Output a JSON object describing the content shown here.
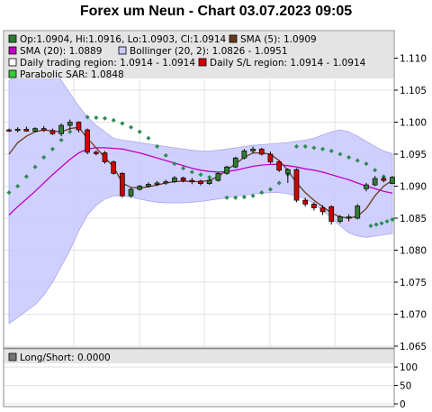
{
  "title": "Forex um Neun - Chart 03.07.2023 09:05",
  "legend": {
    "ohlc": "Op:1.0904, Hi:1.0916, Lo:1.0903, Cl:1.0914",
    "sma5": "SMA (5): 1.0909",
    "sma20": "SMA (20): 1.0889",
    "bollinger": "Bollinger (20, 2): 1.0826 - 1.0951",
    "daily_region": "Daily trading region: 1.0914 - 1.0914",
    "sl_region": "Daily S/L region: 1.0914 - 1.0914",
    "sar": "Parabolic SAR: 1.0848",
    "longshort": "Long/Short: 0.0000"
  },
  "colors": {
    "sma5": "#6b3a1f",
    "sma20": "#c000c0",
    "bollinger_fill": "#c8c8ff",
    "sar": "#2e8b57",
    "up": "#2e7d32",
    "down": "#d00000"
  },
  "chart_data": {
    "type": "candlestick",
    "y_ticks": [
      "1.110",
      "1.105",
      "1.100",
      "1.095",
      "1.090",
      "1.085",
      "1.080",
      "1.075",
      "1.070",
      "1.065"
    ],
    "ylim": [
      1.065,
      1.1125
    ],
    "candles": [
      {
        "o": 1.0988,
        "h": 1.099,
        "l": 1.0985,
        "c": 1.0987
      },
      {
        "o": 1.0987,
        "h": 1.0992,
        "l": 1.0984,
        "c": 1.0989
      },
      {
        "o": 1.0989,
        "h": 1.0993,
        "l": 1.0985,
        "c": 1.0986
      },
      {
        "o": 1.0986,
        "h": 1.0992,
        "l": 1.0984,
        "c": 1.099
      },
      {
        "o": 1.099,
        "h": 1.0994,
        "l": 1.0985,
        "c": 1.0987
      },
      {
        "o": 1.0987,
        "h": 1.099,
        "l": 1.098,
        "c": 1.0982
      },
      {
        "o": 1.0982,
        "h": 1.0998,
        "l": 1.0978,
        "c": 1.0995
      },
      {
        "o": 1.0995,
        "h": 1.1004,
        "l": 1.0988,
        "c": 1.1
      },
      {
        "o": 1.1,
        "h": 1.1001,
        "l": 1.0984,
        "c": 1.0988
      },
      {
        "o": 1.0988,
        "h": 1.099,
        "l": 1.095,
        "c": 1.0953
      },
      {
        "o": 1.0953,
        "h": 1.0956,
        "l": 1.0948,
        "c": 1.0952
      },
      {
        "o": 1.0952,
        "h": 1.0955,
        "l": 1.0935,
        "c": 1.0938
      },
      {
        "o": 1.0938,
        "h": 1.094,
        "l": 1.0918,
        "c": 1.092
      },
      {
        "o": 1.092,
        "h": 1.0922,
        "l": 1.0882,
        "c": 1.0885
      },
      {
        "o": 1.0885,
        "h": 1.0898,
        "l": 1.0882,
        "c": 1.0895
      },
      {
        "o": 1.0895,
        "h": 1.0902,
        "l": 1.0893,
        "c": 1.09
      },
      {
        "o": 1.09,
        "h": 1.0906,
        "l": 1.0898,
        "c": 1.0903
      },
      {
        "o": 1.0903,
        "h": 1.0908,
        "l": 1.09,
        "c": 1.0905
      },
      {
        "o": 1.0905,
        "h": 1.091,
        "l": 1.0902,
        "c": 1.0907
      },
      {
        "o": 1.0907,
        "h": 1.0916,
        "l": 1.0905,
        "c": 1.0913
      },
      {
        "o": 1.0913,
        "h": 1.0915,
        "l": 1.0906,
        "c": 1.0909
      },
      {
        "o": 1.0909,
        "h": 1.0913,
        "l": 1.0903,
        "c": 1.0908
      },
      {
        "o": 1.0908,
        "h": 1.091,
        "l": 1.0901,
        "c": 1.0904
      },
      {
        "o": 1.0904,
        "h": 1.0912,
        "l": 1.0902,
        "c": 1.0909
      },
      {
        "o": 1.0909,
        "h": 1.0922,
        "l": 1.0908,
        "c": 1.092
      },
      {
        "o": 1.092,
        "h": 1.0932,
        "l": 1.0918,
        "c": 1.093
      },
      {
        "o": 1.093,
        "h": 1.0946,
        "l": 1.0928,
        "c": 1.0944
      },
      {
        "o": 1.0944,
        "h": 1.0958,
        "l": 1.0942,
        "c": 1.0955
      },
      {
        "o": 1.0955,
        "h": 1.0962,
        "l": 1.0951,
        "c": 1.0958
      },
      {
        "o": 1.0958,
        "h": 1.096,
        "l": 1.0948,
        "c": 1.095
      },
      {
        "o": 1.095,
        "h": 1.0954,
        "l": 1.0935,
        "c": 1.0938
      },
      {
        "o": 1.0938,
        "h": 1.094,
        "l": 1.0922,
        "c": 1.0925
      },
      {
        "o": 1.092,
        "h": 1.0928,
        "l": 1.0905,
        "c": 1.0926
      },
      {
        "o": 1.0926,
        "h": 1.0928,
        "l": 1.0875,
        "c": 1.0878
      },
      {
        "o": 1.0878,
        "h": 1.0882,
        "l": 1.0868,
        "c": 1.0872
      },
      {
        "o": 1.0872,
        "h": 1.0875,
        "l": 1.0862,
        "c": 1.0866
      },
      {
        "o": 1.0866,
        "h": 1.087,
        "l": 1.0855,
        "c": 1.086
      },
      {
        "o": 1.0868,
        "h": 1.087,
        "l": 1.084,
        "c": 1.0845
      },
      {
        "o": 1.0845,
        "h": 1.0855,
        "l": 1.0842,
        "c": 1.0852
      },
      {
        "o": 1.0852,
        "h": 1.0856,
        "l": 1.0845,
        "c": 1.085
      },
      {
        "o": 1.085,
        "h": 1.0872,
        "l": 1.0848,
        "c": 1.0869
      },
      {
        "o": 1.0896,
        "h": 1.0905,
        "l": 1.0892,
        "c": 1.0902
      },
      {
        "o": 1.0902,
        "h": 1.0916,
        "l": 1.09,
        "c": 1.0912
      },
      {
        "o": 1.0912,
        "h": 1.0915,
        "l": 1.0906,
        "c": 1.0909
      },
      {
        "o": 1.0904,
        "h": 1.0916,
        "l": 1.0903,
        "c": 1.0914
      }
    ],
    "sma5": [
      1.095,
      1.0968,
      1.0978,
      1.0985,
      1.0988,
      1.0986,
      1.0985,
      1.099,
      1.0992,
      1.0975,
      1.096,
      1.0945,
      1.093,
      1.0905,
      1.0898,
      1.0897,
      1.0899,
      1.0902,
      1.0905,
      1.0907,
      1.0908,
      1.0907,
      1.0907,
      1.0909,
      1.0915,
      1.0925,
      1.0935,
      1.0945,
      1.0952,
      1.0952,
      1.095,
      1.094,
      1.0925,
      1.0905,
      1.089,
      1.0878,
      1.0868,
      1.0858,
      1.0852,
      1.085,
      1.0853,
      1.0865,
      1.0885,
      1.09,
      1.0909
    ],
    "sma20": [
      1.0855,
      1.0868,
      1.088,
      1.0892,
      1.0905,
      1.0918,
      1.093,
      1.0942,
      1.0952,
      1.0958,
      1.096,
      1.096,
      1.0959,
      1.0958,
      1.0955,
      1.0952,
      1.0948,
      1.0944,
      1.094,
      1.0936,
      1.0932,
      1.0928,
      1.0925,
      1.0923,
      1.0922,
      1.0923,
      1.0925,
      1.0928,
      1.0931,
      1.0933,
      1.0934,
      1.0934,
      1.0932,
      1.093,
      1.0927,
      1.0925,
      1.0922,
      1.0918,
      1.0914,
      1.091,
      1.0905,
      1.09,
      1.0896,
      1.0892,
      1.0889
    ],
    "bb_upper": [
      1.1065,
      1.1075,
      1.1083,
      1.109,
      1.109,
      1.108,
      1.1065,
      1.1045,
      1.1025,
      1.1008,
      1.0995,
      1.0985,
      1.0975,
      1.0972,
      1.097,
      1.0968,
      1.0966,
      1.0964,
      1.0962,
      1.096,
      1.0958,
      1.0956,
      1.0955,
      1.0955,
      1.0956,
      1.0958,
      1.096,
      1.0962,
      1.0964,
      1.0965,
      1.0966,
      1.0967,
      1.0968,
      1.097,
      1.0972,
      1.0975,
      1.098,
      1.0985,
      1.0988,
      1.0985,
      1.0978,
      1.097,
      1.0962,
      1.0955,
      1.0951
    ],
    "bb_lower": [
      1.0685,
      1.0695,
      1.0705,
      1.0715,
      1.073,
      1.075,
      1.0775,
      1.08,
      1.083,
      1.0855,
      1.087,
      1.088,
      1.0885,
      1.0885,
      1.0883,
      1.088,
      1.0877,
      1.0875,
      1.0874,
      1.0874,
      1.0874,
      1.0875,
      1.0876,
      1.0878,
      1.088,
      1.0882,
      1.0884,
      1.0886,
      1.0888,
      1.0889,
      1.089,
      1.089,
      1.0888,
      1.0885,
      1.088,
      1.0873,
      1.0862,
      1.085,
      1.0838,
      1.0827,
      1.0822,
      1.082,
      1.0822,
      1.0824,
      1.0826
    ],
    "sar": [
      1.089,
      1.09,
      1.0915,
      1.093,
      1.0945,
      1.0958,
      1.0972,
      1.0985,
      1.0998,
      1.1008,
      1.1007,
      1.1006,
      1.1003,
      1.0998,
      1.0992,
      1.0985,
      1.0975,
      1.0962,
      1.0948,
      1.0935,
      1.0928,
      1.0922,
      1.0918,
      1.0914,
      1.091,
      1.0882,
      1.0882,
      1.0883,
      1.0885,
      1.089,
      1.0895,
      1.0905,
      1.0918,
      1.0962,
      1.0962,
      1.096,
      1.0958,
      1.0955,
      1.095,
      1.0945,
      1.094,
      1.0935,
      1.0925,
      1.0915,
      1.0848
    ],
    "sar_tail": [
      1.0838,
      1.084,
      1.0842,
      1.0845,
      1.0848
    ],
    "lower": {
      "y_ticks": [
        "100",
        "50",
        "0"
      ],
      "ylim": [
        0,
        110
      ]
    }
  }
}
